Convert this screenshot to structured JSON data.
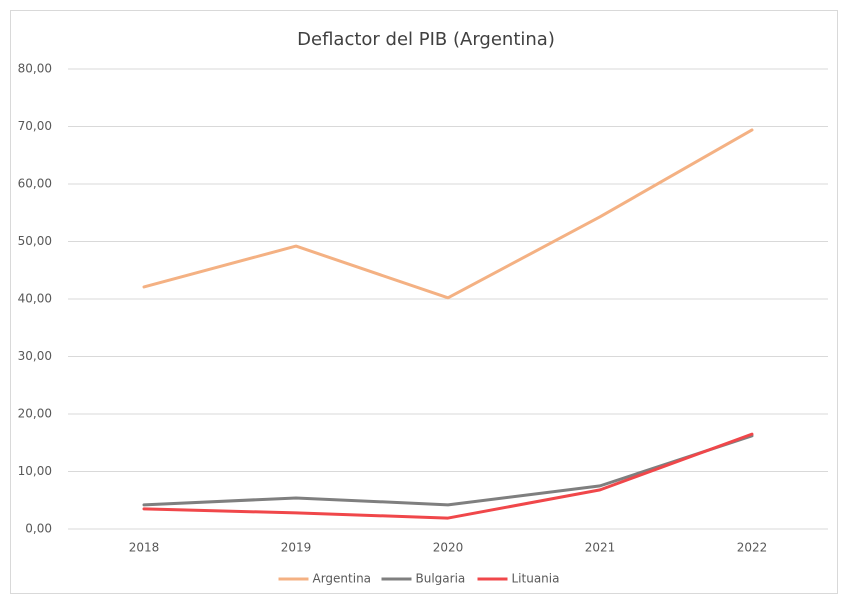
{
  "chart_data": {
    "type": "line",
    "title": "Deflactor del PIB (Argentina)",
    "categories": [
      "2018",
      "2019",
      "2020",
      "2021",
      "2022"
    ],
    "series": [
      {
        "name": "Argentina",
        "color": "#f4b183",
        "values": [
          42.1,
          49.2,
          40.2,
          54.3,
          69.4
        ]
      },
      {
        "name": "Bulgaria",
        "color": "#7f7f7f",
        "values": [
          4.2,
          5.4,
          4.2,
          7.5,
          16.2
        ]
      },
      {
        "name": "Lituania",
        "color": "#f0474a",
        "values": [
          3.5,
          2.8,
          1.9,
          6.8,
          16.5
        ]
      }
    ],
    "ylim": [
      0,
      80
    ],
    "yticks": [
      {
        "value": 0,
        "label": "0,00"
      },
      {
        "value": 10,
        "label": "10,00"
      },
      {
        "value": 20,
        "label": "20,00"
      },
      {
        "value": 30,
        "label": "30,00"
      },
      {
        "value": 40,
        "label": "40,00"
      },
      {
        "value": 50,
        "label": "50,00"
      },
      {
        "value": 60,
        "label": "60,00"
      },
      {
        "value": 70,
        "label": "70,00"
      },
      {
        "value": 80,
        "label": "80,00"
      }
    ],
    "grid": true,
    "legend": "bottom"
  }
}
